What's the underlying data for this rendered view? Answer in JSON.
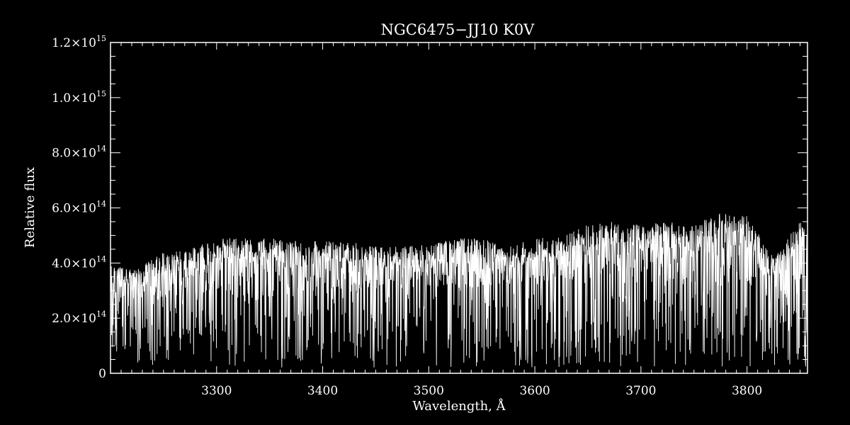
{
  "chart_data": {
    "type": "line",
    "title": "NGC6475−JJ10  K0V",
    "xlabel": "Wavelength, Å",
    "ylabel": "Relative flux",
    "xlim": [
      3200,
      3857
    ],
    "ylim": [
      0,
      1200000000000000.0
    ],
    "x_ticks": [
      3300,
      3400,
      3500,
      3600,
      3700,
      3800
    ],
    "y_ticks": [
      {
        "value": 0,
        "mantissa": "0",
        "exp": ""
      },
      {
        "value": 200000000000000.0,
        "mantissa": "2.0×10",
        "exp": "14"
      },
      {
        "value": 400000000000000.0,
        "mantissa": "4.0×10",
        "exp": "14"
      },
      {
        "value": 600000000000000.0,
        "mantissa": "6.0×10",
        "exp": "14"
      },
      {
        "value": 800000000000000.0,
        "mantissa": "8.0×10",
        "exp": "14"
      },
      {
        "value": 1000000000000000.0,
        "mantissa": "1.0×10",
        "exp": "15"
      },
      {
        "value": 1200000000000000.0,
        "mantissa": "1.2×10",
        "exp": "15"
      }
    ],
    "grid": false,
    "series": [
      {
        "line_color": "#ffffff",
        "x": [
          3200,
          3225,
          3250,
          3275,
          3300,
          3325,
          3350,
          3375,
          3400,
          3425,
          3450,
          3475,
          3500,
          3525,
          3550,
          3575,
          3600,
          3625,
          3650,
          3675,
          3700,
          3725,
          3750,
          3775,
          3800,
          3825,
          3850
        ],
        "y_upper": [
          390000000000000.0,
          380000000000000.0,
          440000000000000.0,
          450000000000000.0,
          490000000000000.0,
          490000000000000.0,
          490000000000000.0,
          480000000000000.0,
          480000000000000.0,
          480000000000000.0,
          460000000000000.0,
          460000000000000.0,
          470000000000000.0,
          490000000000000.0,
          490000000000000.0,
          460000000000000.0,
          490000000000000.0,
          500000000000000.0,
          540000000000000.0,
          550000000000000.0,
          540000000000000.0,
          550000000000000.0,
          540000000000000.0,
          580000000000000.0,
          570000000000000.0,
          420000000000000.0,
          560000000000000.0
        ],
        "y_lower": [
          60000000000000.0,
          30000000000000.0,
          20000000000000.0,
          40000000000000.0,
          30000000000000.0,
          20000000000000.0,
          20000000000000.0,
          20000000000000.0,
          20000000000000.0,
          20000000000000.0,
          20000000000000.0,
          20000000000000.0,
          20000000000000.0,
          20000000000000.0,
          20000000000000.0,
          20000000000000.0,
          20000000000000.0,
          20000000000000.0,
          20000000000000.0,
          20000000000000.0,
          20000000000000.0,
          20000000000000.0,
          20000000000000.0,
          20000000000000.0,
          20000000000000.0,
          20000000000000.0,
          20000000000000.0
        ],
        "y_mean": [
          240000000000000.0,
          250000000000000.0,
          270000000000000.0,
          280000000000000.0,
          290000000000000.0,
          300000000000000.0,
          300000000000000.0,
          300000000000000.0,
          300000000000000.0,
          300000000000000.0,
          300000000000000.0,
          300000000000000.0,
          310000000000000.0,
          320000000000000.0,
          320000000000000.0,
          310000000000000.0,
          320000000000000.0,
          330000000000000.0,
          340000000000000.0,
          350000000000000.0,
          340000000000000.0,
          330000000000000.0,
          330000000000000.0,
          340000000000000.0,
          330000000000000.0,
          260000000000000.0,
          300000000000000.0
        ]
      }
    ]
  }
}
